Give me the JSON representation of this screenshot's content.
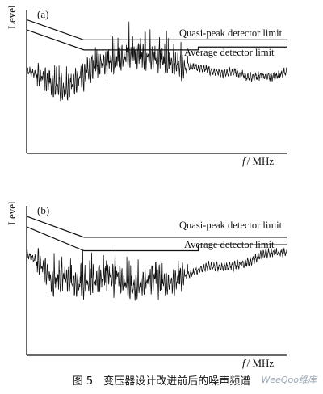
{
  "chart_data": [
    {
      "type": "line",
      "panel_label": "(a)",
      "xlabel_var": "f",
      "xlabel_unit": "/ MHz",
      "ylabel": "Level",
      "axes_ticks": "none",
      "series": [
        {
          "name": "Quasi-peak detector limit",
          "x": [
            0,
            0.22,
            0.22,
            1.0
          ],
          "y": [
            0.93,
            0.79,
            0.79,
            0.79
          ],
          "color": "#111111"
        },
        {
          "name": "Average detector limit",
          "x": [
            0,
            0.22,
            0.66,
            0.66,
            1.0
          ],
          "y": [
            0.86,
            0.72,
            0.72,
            0.74,
            0.74
          ],
          "color": "#111111"
        },
        {
          "name": "noise spectrum",
          "x": [
            0,
            0.05,
            0.1,
            0.15,
            0.2,
            0.25,
            0.3,
            0.35,
            0.4,
            0.45,
            0.5,
            0.55,
            0.6,
            0.65,
            0.7,
            0.75,
            0.8,
            0.85,
            0.9,
            0.95,
            1.0
          ],
          "y": [
            0.58,
            0.54,
            0.47,
            0.44,
            0.52,
            0.59,
            0.63,
            0.66,
            0.68,
            0.67,
            0.66,
            0.63,
            0.6,
            0.6,
            0.58,
            0.56,
            0.57,
            0.53,
            0.54,
            0.53,
            0.57
          ],
          "color": "#111111"
        }
      ]
    },
    {
      "type": "line",
      "panel_label": "(b)",
      "xlabel_var": "f",
      "xlabel_unit": "/ MHz",
      "ylabel": "Level",
      "axes_ticks": "none",
      "series": [
        {
          "name": "Quasi-peak detector limit",
          "x": [
            0,
            0.22,
            0.22,
            1.0
          ],
          "y": [
            0.93,
            0.79,
            0.79,
            0.79
          ],
          "color": "#111111"
        },
        {
          "name": "Average detector limit",
          "x": [
            0,
            0.22,
            0.66,
            0.66,
            1.0
          ],
          "y": [
            0.86,
            0.7,
            0.7,
            0.74,
            0.74
          ],
          "color": "#111111"
        },
        {
          "name": "noise spectrum",
          "x": [
            0,
            0.05,
            0.1,
            0.15,
            0.2,
            0.25,
            0.3,
            0.35,
            0.4,
            0.45,
            0.5,
            0.55,
            0.6,
            0.65,
            0.7,
            0.75,
            0.8,
            0.85,
            0.9,
            0.95,
            1.0
          ],
          "y": [
            0.68,
            0.62,
            0.48,
            0.52,
            0.46,
            0.48,
            0.52,
            0.53,
            0.44,
            0.48,
            0.52,
            0.47,
            0.53,
            0.56,
            0.6,
            0.59,
            0.6,
            0.62,
            0.67,
            0.69,
            0.68
          ],
          "color": "#111111"
        }
      ]
    }
  ],
  "caption": "图 5　变压器设计改进前后的噪声频谱",
  "watermark": "WeeQoo维库"
}
